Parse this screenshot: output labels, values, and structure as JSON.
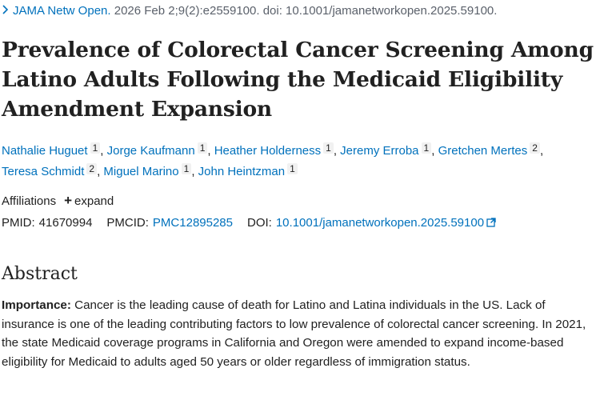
{
  "citation": {
    "chevron_icon": "chevron-right-icon",
    "journal": "JAMA Netw Open.",
    "details": " 2026 Feb 2;9(2):e2559100. doi: 10.1001/jamanetworkopen.2025.59100."
  },
  "article": {
    "title": "Prevalence of Colorectal Cancer Screening Among Latino Adults Following the Medicaid Eligibility Amendment Expansion"
  },
  "authors": [
    {
      "name": "Nathalie Huguet",
      "aff": "1"
    },
    {
      "name": "Jorge Kaufmann",
      "aff": "1"
    },
    {
      "name": "Heather Holderness",
      "aff": "1"
    },
    {
      "name": "Jeremy Erroba",
      "aff": "1"
    },
    {
      "name": "Gretchen Mertes",
      "aff": "2"
    },
    {
      "name": "Teresa Schmidt",
      "aff": "2"
    },
    {
      "name": "Miguel Marino",
      "aff": "1"
    },
    {
      "name": "John Heintzman",
      "aff": "1"
    }
  ],
  "affiliations": {
    "label": "Affiliations",
    "expand_icon": "plus-icon",
    "expand_label": "expand"
  },
  "identifiers": {
    "pmid_label": "PMID:",
    "pmid": "41670994",
    "pmcid_label": "PMCID:",
    "pmcid": "PMC12895285",
    "doi_label": "DOI:",
    "doi": "10.1001/jamanetworkopen.2025.59100",
    "doi_icon": "external-link-icon"
  },
  "abstract": {
    "heading": "Abstract",
    "lead": "Importance:",
    "text": " Cancer is the leading cause of death for Latino and Latina individuals in the US. Lack of insurance is one of the leading contributing factors to low prevalence of colorectal cancer screening. In 2021, the state Medicaid coverage programs in California and Oregon were amended to expand income-based eligibility for Medicaid to adults aged 50 years or older regardless of immigration status."
  },
  "colors": {
    "link": "#0071bc",
    "text": "#212121",
    "muted": "#5b616b",
    "badge_bg": "#f1f1f1"
  }
}
